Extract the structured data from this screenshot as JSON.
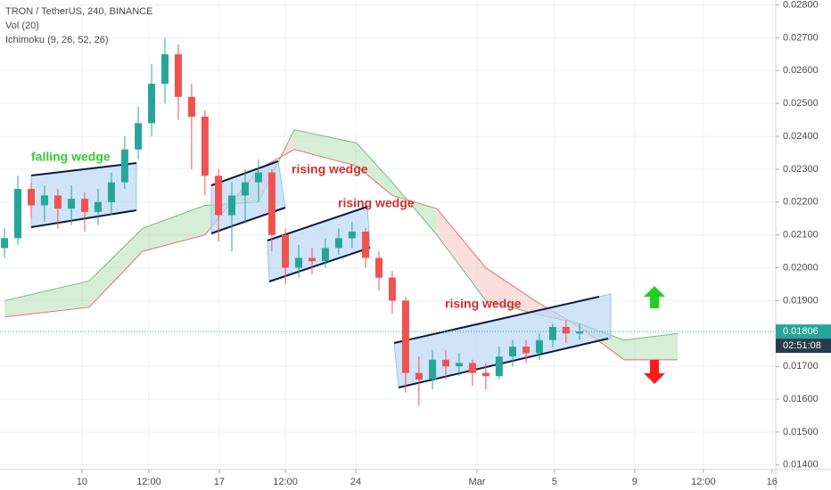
{
  "header": {
    "symbol": "TRON / TetherUS, 240, BINANCE",
    "volume": "Vol (20)",
    "ichimoku": "Ichimoku (9, 26, 52, 26)"
  },
  "chart_data": {
    "type": "candlestick",
    "up_color": "#26a69a",
    "down_color": "#ef5350",
    "xlim": [
      0,
      39.55
    ],
    "ylim": [
      0.01386,
      0.02815
    ],
    "xticks": [
      {
        "value": 4.18,
        "label": "10"
      },
      {
        "value": 7.59,
        "label": "12:00"
      },
      {
        "value": 11.18,
        "label": "17"
      },
      {
        "value": 14.55,
        "label": "12:00"
      },
      {
        "value": 18.14,
        "label": "24"
      },
      {
        "value": 24.32,
        "label": "Mar"
      },
      {
        "value": 28.27,
        "label": "5"
      },
      {
        "value": 32.36,
        "label": "9"
      },
      {
        "value": 35.86,
        "label": "12:00"
      },
      {
        "value": 39.36,
        "label": "16"
      }
    ],
    "yticks": [
      {
        "value": 0.014,
        "label": "0.01400"
      },
      {
        "value": 0.015,
        "label": "0.01500"
      },
      {
        "value": 0.016,
        "label": "0.01600"
      },
      {
        "value": 0.017,
        "label": "0.01700"
      },
      {
        "value": 0.018,
        "label": "0.01800"
      },
      {
        "value": 0.019,
        "label": "0.01900"
      },
      {
        "value": 0.02,
        "label": "0.02000"
      },
      {
        "value": 0.021,
        "label": "0.02100"
      },
      {
        "value": 0.022,
        "label": "0.02200"
      },
      {
        "value": 0.023,
        "label": "0.02300"
      },
      {
        "value": 0.024,
        "label": "0.02400"
      },
      {
        "value": 0.025,
        "label": "0.02500"
      },
      {
        "value": 0.026,
        "label": "0.02600"
      },
      {
        "value": 0.027,
        "label": "0.02700"
      },
      {
        "value": 0.028,
        "label": "0.02800"
      }
    ],
    "grid": true,
    "x": [
      0.23,
      0.91,
      1.59,
      2.27,
      2.95,
      3.64,
      4.32,
      5,
      5.68,
      6.36,
      7.05,
      7.73,
      8.41,
      9.09,
      9.77,
      10.45,
      11.14,
      11.82,
      12.5,
      13.18,
      13.86,
      14.55,
      15.23,
      15.91,
      16.59,
      17.27,
      17.95,
      18.64,
      19.32,
      20,
      20.68,
      21.36,
      22.05,
      22.73,
      23.41,
      24.09,
      24.77,
      25.45,
      26.14,
      26.82,
      27.5,
      28.18,
      28.86,
      29.55
    ],
    "open": [
      0.0206,
      0.0209,
      0.0224,
      0.0219,
      0.0222,
      0.0218,
      0.0221,
      0.0217,
      0.022,
      0.0226,
      0.0236,
      0.0244,
      0.0256,
      0.0265,
      0.0252,
      0.0246,
      0.0228,
      0.0216,
      0.0222,
      0.0226,
      0.0229,
      0.021,
      0.02,
      0.0203,
      0.0202,
      0.0206,
      0.0209,
      0.0211,
      0.0203,
      0.0197,
      0.019,
      0.0168,
      0.0166,
      0.0172,
      0.017,
      0.0171,
      0.0168,
      0.0167,
      0.0173,
      0.0176,
      0.0174,
      0.0178,
      0.0182,
      0.018
    ],
    "high": [
      0.0212,
      0.0228,
      0.0226,
      0.0225,
      0.0224,
      0.0225,
      0.0223,
      0.0224,
      0.0229,
      0.024,
      0.0249,
      0.0262,
      0.027,
      0.0268,
      0.0256,
      0.0248,
      0.023,
      0.0226,
      0.023,
      0.0233,
      0.023,
      0.0212,
      0.0207,
      0.0206,
      0.0209,
      0.0212,
      0.0214,
      0.0212,
      0.0205,
      0.0199,
      0.0191,
      0.0173,
      0.0175,
      0.0175,
      0.0174,
      0.0172,
      0.0171,
      0.0176,
      0.0178,
      0.0178,
      0.018,
      0.0183,
      0.0184,
      0.0183
    ],
    "low": [
      0.0203,
      0.0207,
      0.0215,
      0.0214,
      0.0212,
      0.0213,
      0.0211,
      0.0213,
      0.0216,
      0.0224,
      0.0233,
      0.024,
      0.025,
      0.0245,
      0.023,
      0.0222,
      0.0208,
      0.0205,
      0.0214,
      0.022,
      0.0205,
      0.0195,
      0.0197,
      0.0198,
      0.02,
      0.0204,
      0.0206,
      0.02,
      0.0193,
      0.0186,
      0.0162,
      0.0158,
      0.0163,
      0.0166,
      0.0167,
      0.0164,
      0.0163,
      0.0166,
      0.017,
      0.0171,
      0.0172,
      0.0176,
      0.0177,
      0.0178
    ],
    "close": [
      0.0209,
      0.0224,
      0.0219,
      0.0222,
      0.0218,
      0.0221,
      0.0217,
      0.022,
      0.0226,
      0.0236,
      0.0244,
      0.0256,
      0.0265,
      0.0252,
      0.0246,
      0.0228,
      0.0216,
      0.0222,
      0.0226,
      0.0229,
      0.021,
      0.02,
      0.0203,
      0.0202,
      0.0206,
      0.0209,
      0.0211,
      0.0203,
      0.0197,
      0.019,
      0.0168,
      0.0166,
      0.0172,
      0.017,
      0.0171,
      0.0168,
      0.0167,
      0.0173,
      0.0176,
      0.0174,
      0.0178,
      0.0182,
      0.018,
      0.01806
    ],
    "cloud": {
      "x": [
        0.23,
        4.55,
        7.27,
        10.45,
        13.18,
        15,
        18.18,
        20,
        22.27,
        24.77,
        27.27,
        29.55,
        31.82,
        34.55
      ],
      "span_a": [
        0.019,
        0.0196,
        0.0212,
        0.0219,
        0.022,
        0.0242,
        0.0238,
        0.0226,
        0.021,
        0.019,
        0.0186,
        0.0183,
        0.0178,
        0.018
      ],
      "span_b": [
        0.0185,
        0.0188,
        0.0205,
        0.021,
        0.023,
        0.0236,
        0.0231,
        0.0222,
        0.0218,
        0.02,
        0.019,
        0.0182,
        0.0172,
        0.0172
      ],
      "up_color": "#a5d6a7",
      "down_color": "#f7b9b9"
    },
    "last_price": 0.01806,
    "countdown": "02:51:08",
    "annotations": [
      "falling wedge",
      "rising wedge",
      "rising wedge",
      "rising wedge"
    ]
  }
}
